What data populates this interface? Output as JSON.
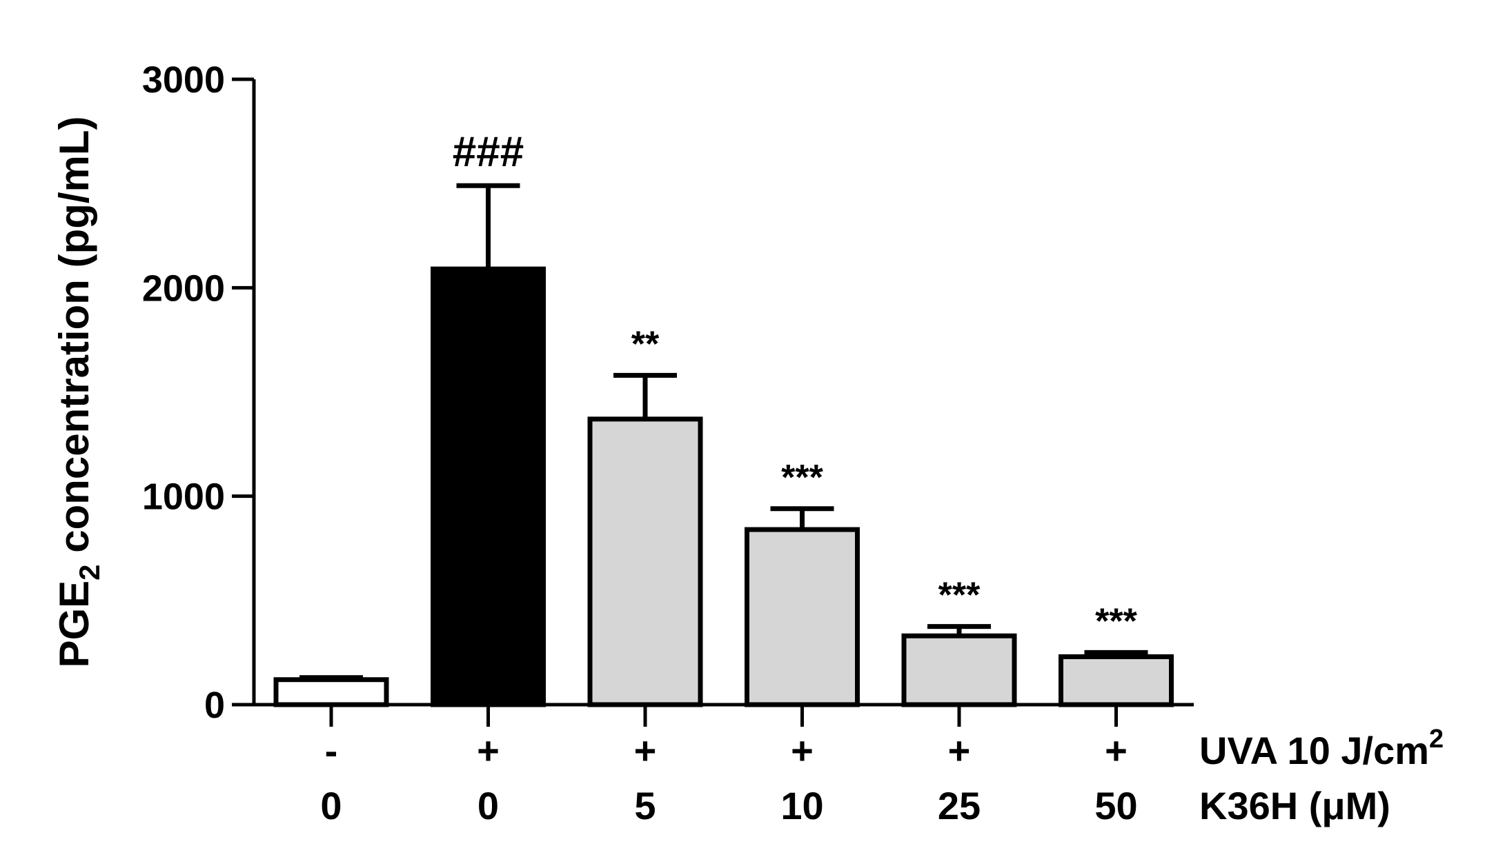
{
  "chart_data": {
    "type": "bar",
    "ylabel_main": "PGE",
    "ylabel_sub": "2",
    "ylabel_rest": " concentration (pg/mL)",
    "ylim": [
      0,
      3000
    ],
    "yticks": [
      "0",
      "1000",
      "2000",
      "3000"
    ],
    "ytick_values": [
      0,
      1000,
      2000,
      3000
    ],
    "row_labels": {
      "uva_main": "UVA 10 J/cm",
      "uva_sup": "2",
      "k36h": "K36H (μM)"
    },
    "categories": [
      {
        "uva": "-",
        "k36h": "0"
      },
      {
        "uva": "+",
        "k36h": "0"
      },
      {
        "uva": "+",
        "k36h": "5"
      },
      {
        "uva": "+",
        "k36h": "10"
      },
      {
        "uva": "+",
        "k36h": "25"
      },
      {
        "uva": "+",
        "k36h": "50"
      }
    ],
    "values": [
      120,
      2090,
      1370,
      840,
      330,
      230
    ],
    "errors": [
      10,
      400,
      210,
      100,
      45,
      20
    ],
    "annotations": [
      "",
      "###",
      "**",
      "***",
      "***",
      "***"
    ],
    "bar_colors": [
      "#ffffff",
      "#000000",
      "#d6d6d6",
      "#d6d6d6",
      "#d6d6d6",
      "#d6d6d6"
    ],
    "grid": false,
    "legend": "none"
  }
}
